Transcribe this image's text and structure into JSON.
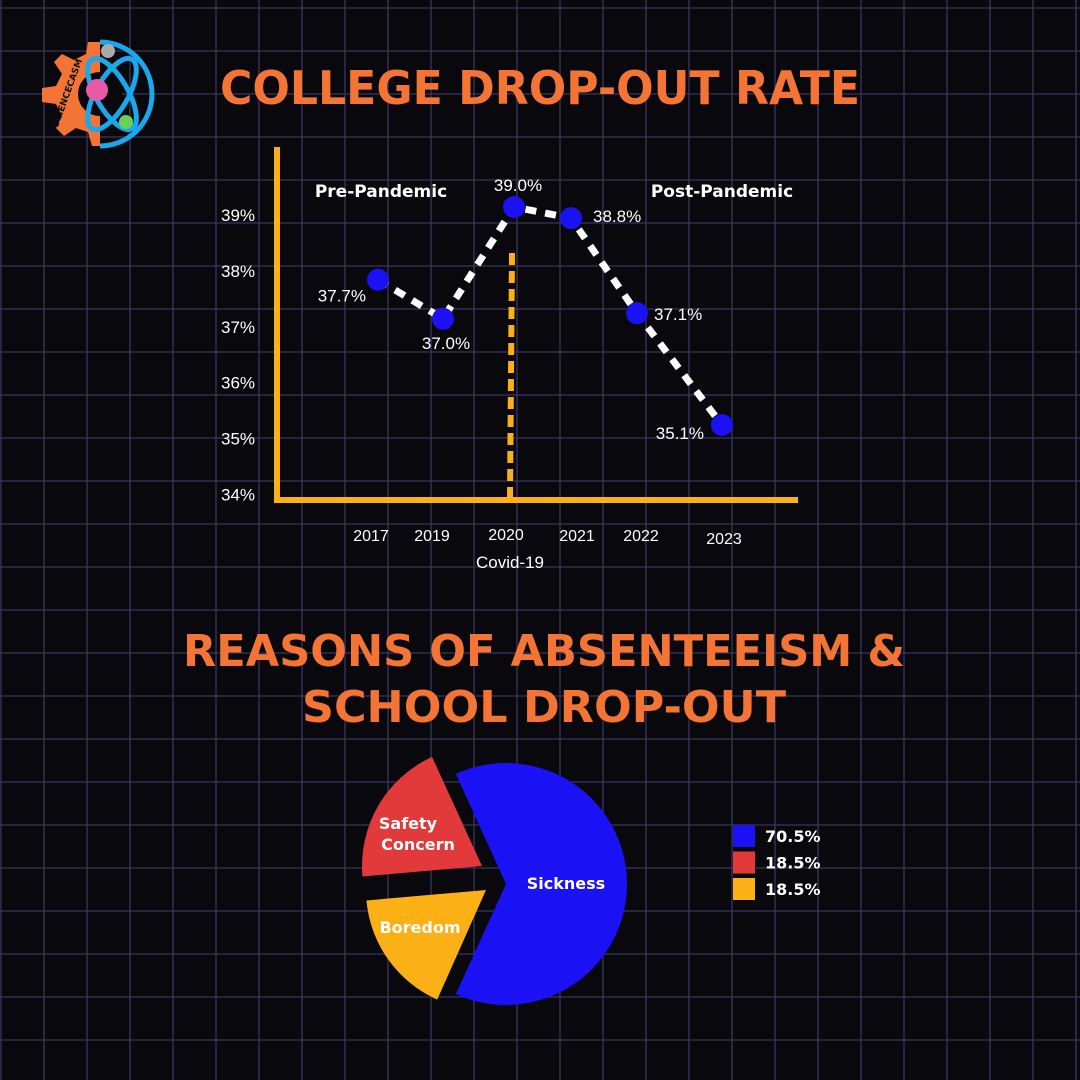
{
  "logo": {
    "text": "SCIENCECASM"
  },
  "colors": {
    "background": "#08080d",
    "grid": "#3a3660",
    "title": "#f37435",
    "axis": "#fbb016",
    "point": "#1a12f5",
    "sickness": "#1a12f5",
    "safety": "#e23a3a",
    "boredom": "#fbb016"
  },
  "chart_data": [
    {
      "type": "line",
      "title": "COLLEGE DROP-OUT RATE",
      "categories": [
        "2017",
        "2019",
        "2020",
        "2021",
        "2022",
        "2023"
      ],
      "values": [
        37.7,
        37.0,
        39.0,
        38.8,
        37.1,
        35.1
      ],
      "data_labels": [
        "37.7%",
        "37.0%",
        "39.0%",
        "38.8%",
        "37.1%",
        "35.1%"
      ],
      "y_tick_labels": [
        "39%",
        "38%",
        "37%",
        "36%",
        "35%",
        "34%"
      ],
      "y_ticks": [
        39,
        38,
        37,
        36,
        35,
        34
      ],
      "ylim": [
        34,
        39.5
      ],
      "annotations": {
        "pre": "Pre-Pandemic",
        "post": "Post-Pandemic",
        "event": "Covid-19",
        "event_category": "2020"
      },
      "grid": false,
      "line_style": "dashed"
    },
    {
      "type": "pie",
      "title_lines": [
        "REASONS OF ABSENTEEISM &",
        "SCHOOL DROP-OUT"
      ],
      "slices": [
        {
          "label": "Sickness",
          "value": 70.5,
          "legend": "70.5%",
          "color": "#1a12f5"
        },
        {
          "label_lines": [
            "Safety",
            "Concern"
          ],
          "value": 18.5,
          "legend": "18.5%",
          "color": "#e23a3a"
        },
        {
          "label": "Boredom",
          "value": 18.5,
          "legend": "18.5%",
          "color": "#fbb016"
        }
      ],
      "legend_position": "right"
    }
  ]
}
